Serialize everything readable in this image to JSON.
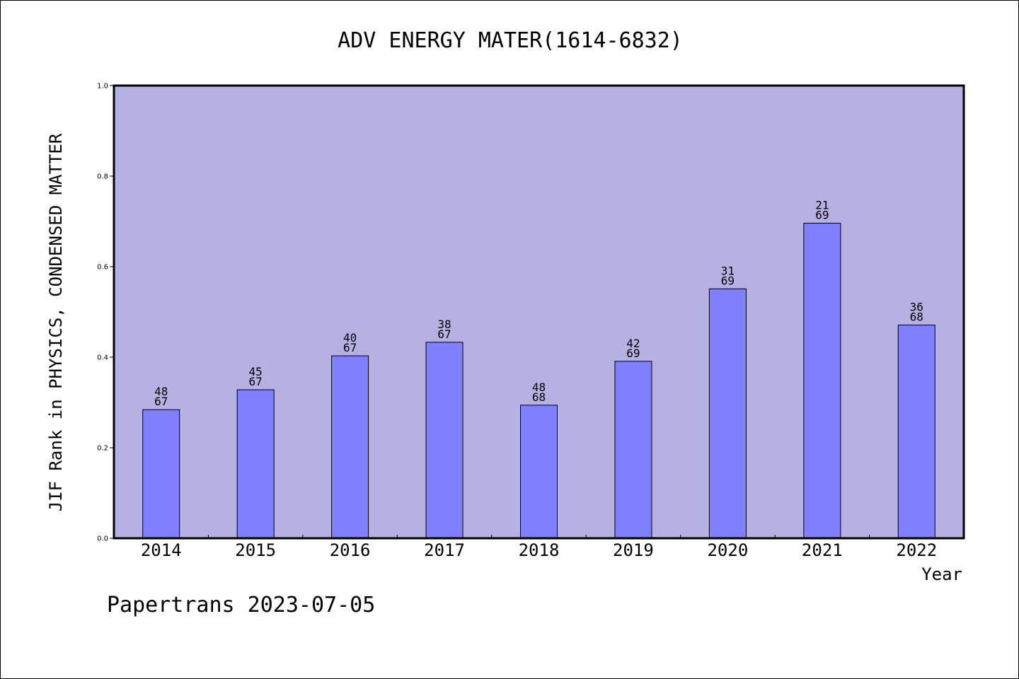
{
  "chart_data": {
    "type": "bar",
    "title": "ADV ENERGY MATER(1614-6832)",
    "xlabel": "Year",
    "ylabel": "JIF Rank in PHYSICS, CONDENSED MATTER",
    "ylim": [
      0,
      1.0
    ],
    "yticks": [
      "0.0",
      "0.2",
      "0.4",
      "0.6",
      "0.8",
      "1.0"
    ],
    "categories": [
      "2014",
      "2015",
      "2016",
      "2017",
      "2018",
      "2019",
      "2020",
      "2021",
      "2022"
    ],
    "values": [
      0.284,
      0.328,
      0.403,
      0.433,
      0.294,
      0.391,
      0.551,
      0.696,
      0.471
    ],
    "rank": [
      "48",
      "45",
      "40",
      "38",
      "48",
      "42",
      "31",
      "21",
      "36"
    ],
    "total": [
      "67",
      "67",
      "67",
      "67",
      "68",
      "69",
      "69",
      "69",
      "68"
    ],
    "grid": false,
    "plot_background": "#b6b1e3",
    "bar_color": "#8080ff"
  },
  "footer": "Papertrans 2023-07-05"
}
